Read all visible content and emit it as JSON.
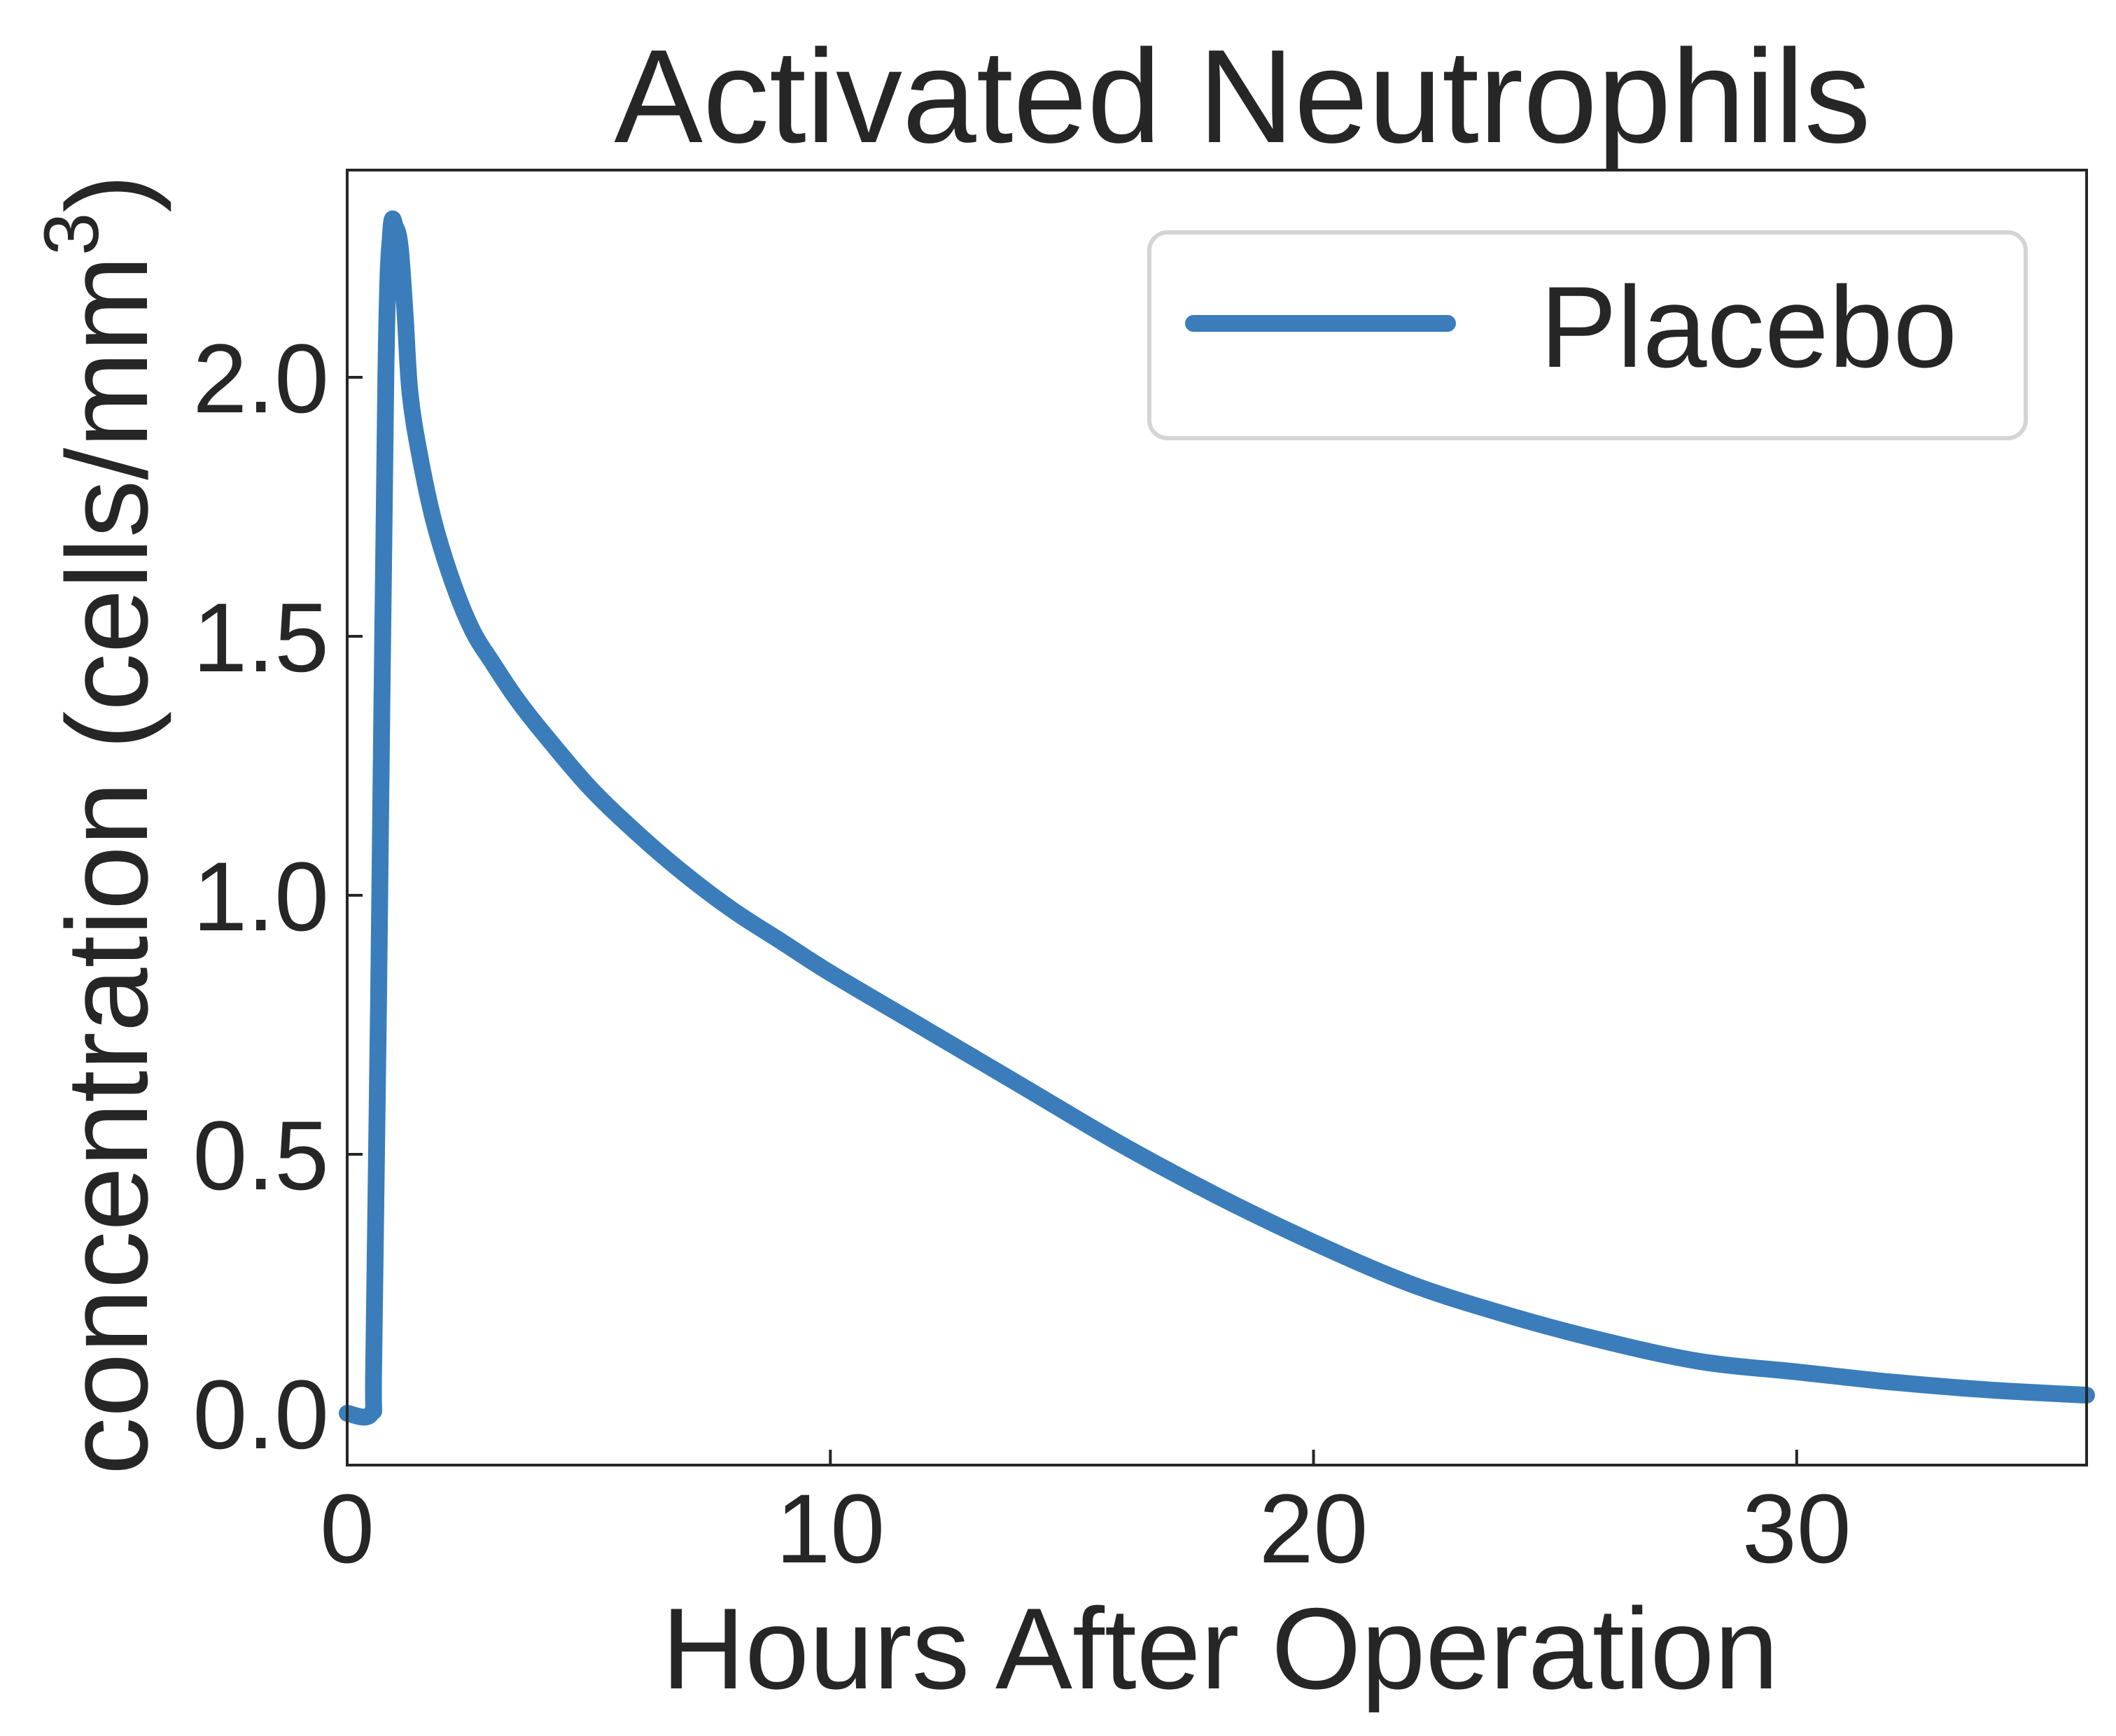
{
  "chart_data": {
    "type": "line",
    "title": "Activated Neutrophils",
    "xlabel": "Hours After Operation",
    "ylabel": "concentration (cells/mm",
    "ylabel_superscript": "3",
    "ylabel_close": ")",
    "xlim": [
      0,
      36
    ],
    "ylim": [
      -0.1,
      2.4
    ],
    "xticks": [
      0,
      10,
      20,
      30
    ],
    "xtick_labels": [
      "0",
      "10",
      "20",
      "30"
    ],
    "yticks": [
      0.0,
      0.5,
      1.0,
      1.5,
      2.0
    ],
    "ytick_labels": [
      "0.0",
      "0.5",
      "1.0",
      "1.5",
      "2.0"
    ],
    "grid": false,
    "legend_position": "top-right",
    "series": [
      {
        "name": "Placebo",
        "color": "#3a7dba",
        "x": [
          0,
          0.5,
          0.55,
          0.65,
          0.8,
          0.9,
          1.0,
          1.1,
          1.2,
          1.3,
          1.5,
          1.8,
          2.2,
          2.6,
          3,
          3.5,
          4,
          5,
          6,
          7,
          8,
          9,
          10,
          12,
          14,
          16,
          18,
          20,
          22,
          24,
          26,
          28,
          30,
          32,
          34,
          36
        ],
        "y": [
          0.0,
          0.0,
          0.1,
          0.8,
          2.0,
          2.28,
          2.29,
          2.25,
          2.12,
          1.97,
          1.85,
          1.72,
          1.6,
          1.51,
          1.45,
          1.38,
          1.32,
          1.21,
          1.12,
          1.04,
          0.97,
          0.91,
          0.85,
          0.74,
          0.63,
          0.52,
          0.42,
          0.33,
          0.25,
          0.19,
          0.14,
          0.1,
          0.08,
          0.06,
          0.045,
          0.035
        ]
      }
    ]
  }
}
